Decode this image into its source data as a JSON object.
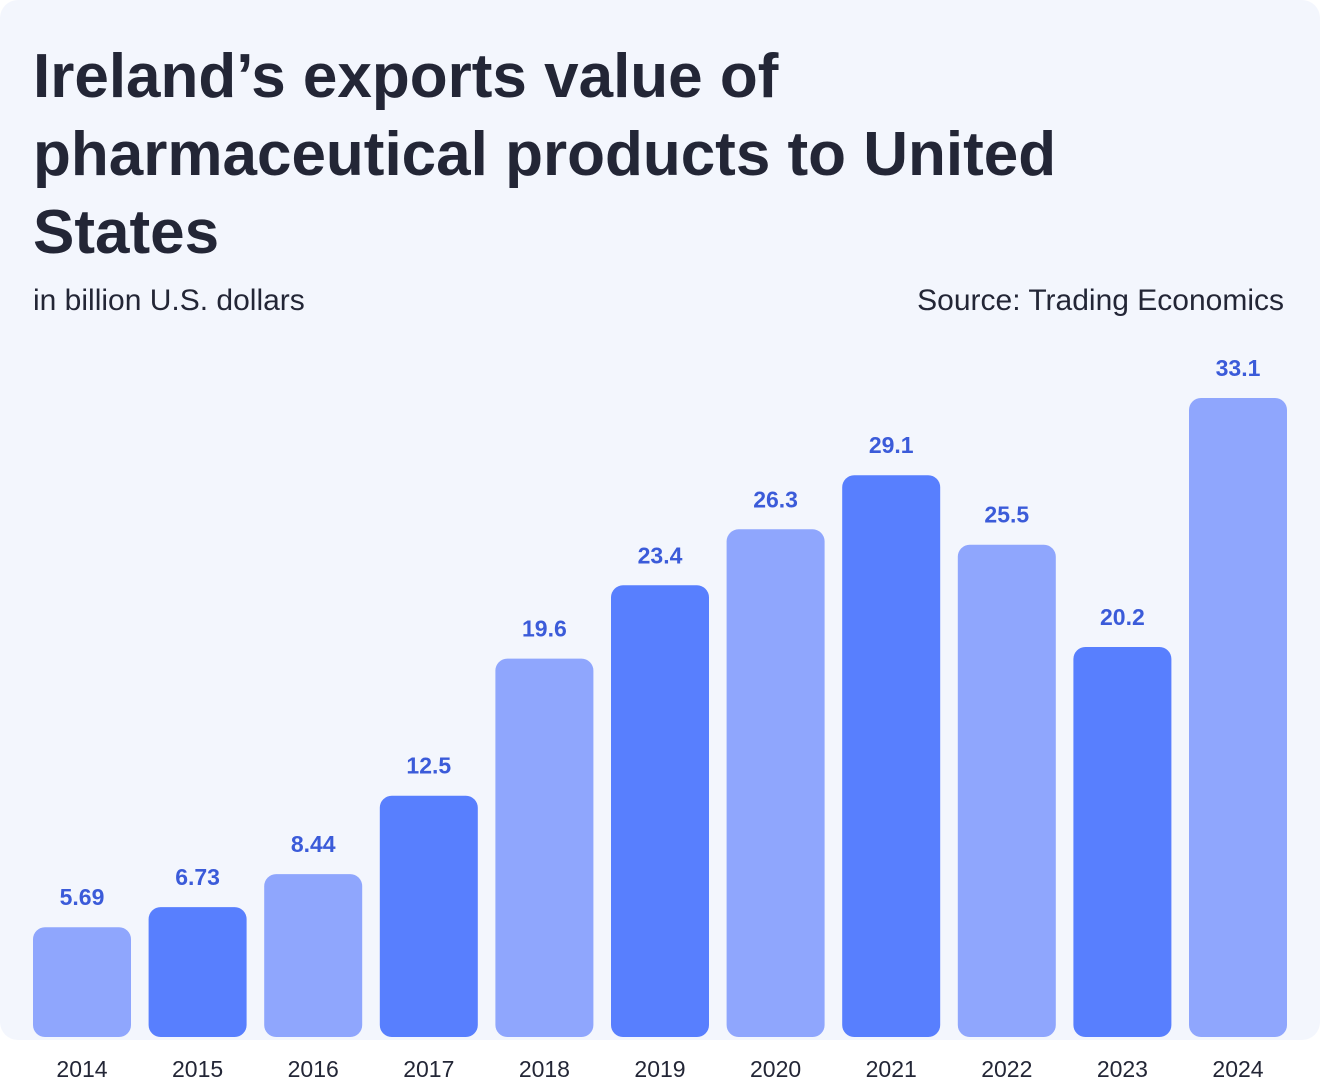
{
  "chart_data": {
    "type": "bar",
    "title": "Ireland’s exports value of pharmaceutical products to United States",
    "subtitle": "in billion U.S. dollars",
    "source": "Source: Trading Economics",
    "categories": [
      "2014",
      "2015",
      "2016",
      "2017",
      "2018",
      "2019",
      "2020",
      "2021",
      "2022",
      "2023",
      "2024"
    ],
    "values": [
      5.69,
      6.73,
      8.44,
      12.5,
      19.6,
      23.4,
      26.3,
      29.1,
      25.5,
      20.2,
      33.1
    ],
    "value_labels": [
      "5.69",
      "6.73",
      "8.44",
      "12.5",
      "19.6",
      "23.4",
      "26.3",
      "29.1",
      "25.5",
      "20.2",
      "33.1"
    ],
    "ylim": [
      0,
      33.1
    ],
    "grid": false,
    "colors": {
      "light_bar": "#8fa6fd",
      "dark_bar": "#587ffe",
      "value_label": "#3b5bd9",
      "background": "#f3f6fd",
      "text": "#232636"
    },
    "bar_shades": [
      "light",
      "dark",
      "light",
      "dark",
      "light",
      "dark",
      "light",
      "dark",
      "light",
      "dark",
      "light"
    ]
  }
}
